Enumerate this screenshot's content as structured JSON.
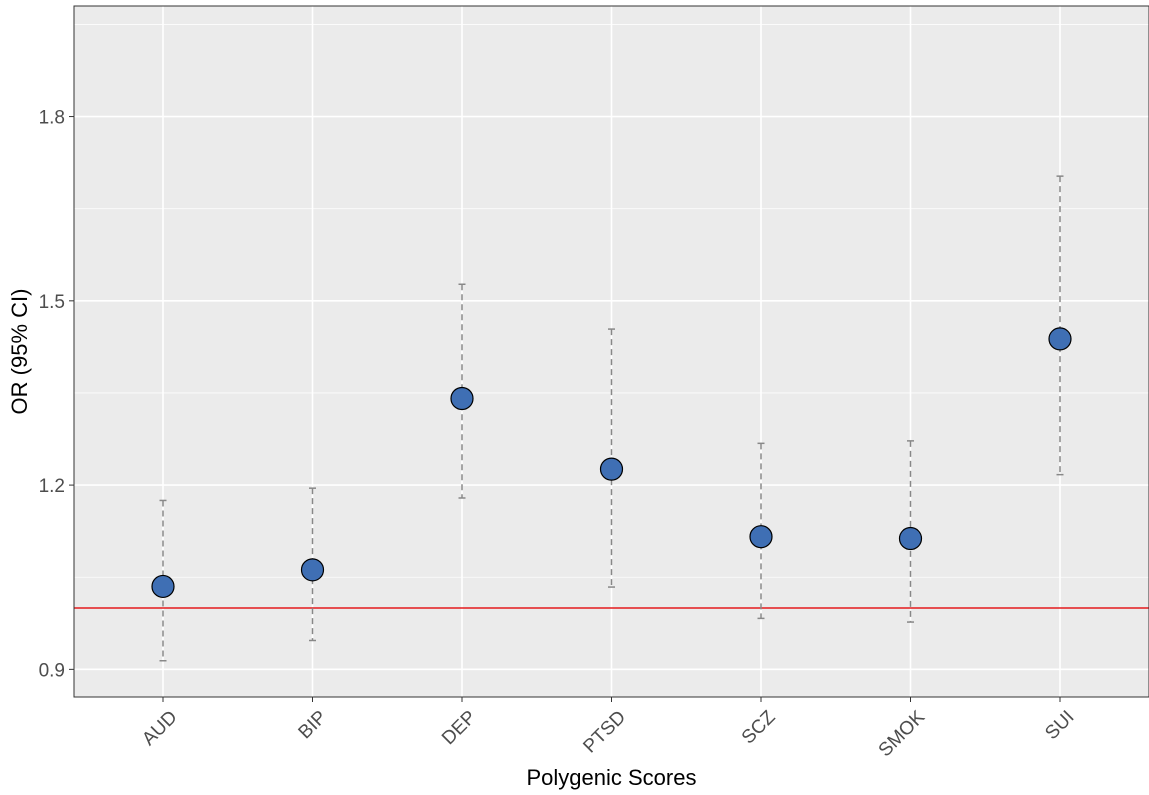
{
  "chart_data": {
    "type": "scatter",
    "title": "",
    "xlabel": "Polygenic Scores",
    "ylabel": "OR (95% CI)",
    "categories": [
      "AUD",
      "BIP",
      "DEP",
      "PTSD",
      "SCZ",
      "SMOK",
      "SUI"
    ],
    "estimates": [
      1.035,
      1.062,
      1.341,
      1.226,
      1.116,
      1.113,
      1.438
    ],
    "ci_lower": [
      0.914,
      0.947,
      1.179,
      1.034,
      0.983,
      0.977,
      1.217
    ],
    "ci_upper": [
      1.175,
      1.195,
      1.527,
      1.454,
      1.268,
      1.272,
      1.703
    ],
    "reference_line": 1.0,
    "ylim": [
      0.855,
      1.98
    ],
    "y_ticks": [
      0.9,
      1.2,
      1.5,
      1.8
    ],
    "y_tick_labels": [
      "0.9",
      "1.2",
      "1.5",
      "1.8"
    ],
    "grid": true,
    "colors": {
      "point_fill": "#3f6fb4",
      "point_stroke": "#000000",
      "reference_line": "#e41a1c",
      "error_bar": "#888888",
      "panel_background": "#ebebeb",
      "grid": "#ffffff"
    }
  }
}
